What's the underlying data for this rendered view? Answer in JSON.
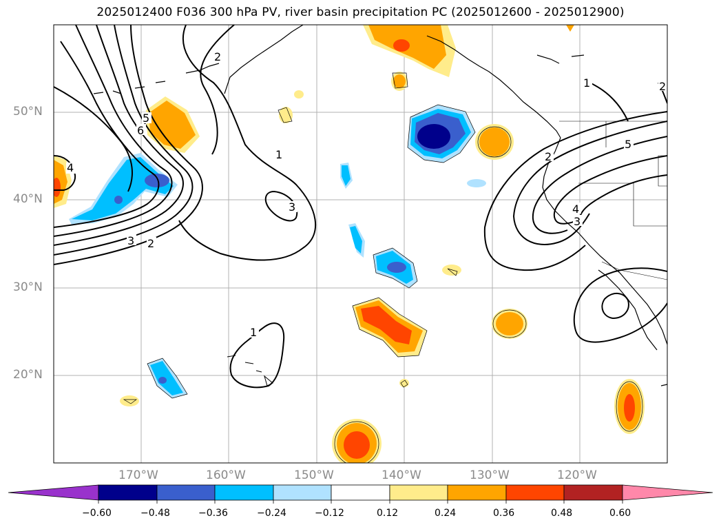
{
  "title": "2025012400 F036 300 hPa PV, river basin precipitation PC (2025012600 - 2025012900)",
  "lat_labels": [
    "50°N",
    "40°N",
    "30°N",
    "20°N"
  ],
  "lon_labels": [
    "170°W",
    "160°W",
    "150°W",
    "140°W",
    "130°W",
    "120°W"
  ],
  "colorbar": {
    "ticks": [
      "−0.60",
      "−0.48",
      "−0.36",
      "−0.24",
      "−0.12",
      "0.12",
      "0.24",
      "0.36",
      "0.48",
      "0.60"
    ],
    "colors": [
      "#9932cc",
      "#00008b",
      "#3a5fcd",
      "#00bfff",
      "#b0e2ff",
      "#ffffff",
      "#ffec8b",
      "#ffa500",
      "#ff4500",
      "#b22222",
      "#ff88aa"
    ]
  },
  "contour_labels": [
    "2",
    "4",
    "5",
    "6",
    "1",
    "3",
    "3",
    "2",
    "1",
    "2",
    "5",
    "4",
    "3",
    "1",
    "2"
  ]
}
